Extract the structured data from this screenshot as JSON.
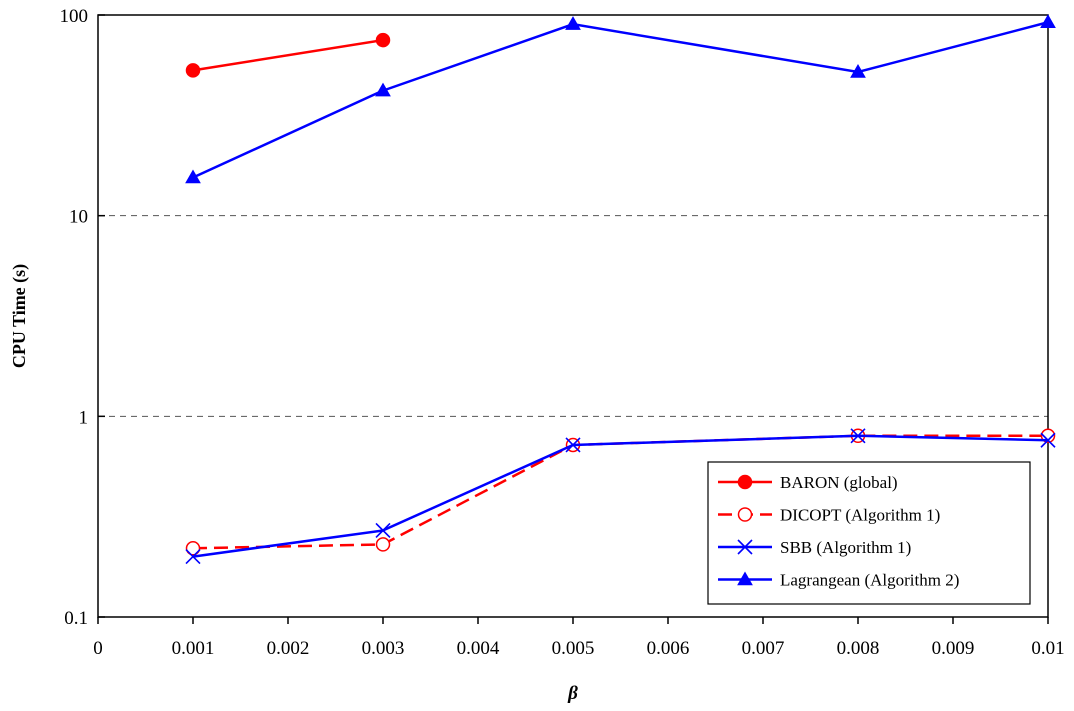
{
  "chart_data": {
    "type": "line",
    "title": "",
    "xlabel": "β",
    "ylabel": "CPU Time (s)",
    "x_ticks": [
      "0",
      "0.001",
      "0.002",
      "0.003",
      "0.004",
      "0.005",
      "0.006",
      "0.007",
      "0.008",
      "0.009",
      "0.01"
    ],
    "y_ticks": [
      "0.1",
      "1",
      "10",
      "100"
    ],
    "xlim": [
      0,
      0.01
    ],
    "ylim": [
      0.1,
      100
    ],
    "y_scale": "log",
    "grid": "horizontal dashed at 1 and 10",
    "legend_position": "bottom-right",
    "series": [
      {
        "name": "BARON (global)",
        "color": "#ff0000",
        "line_style": "solid",
        "marker": "filled-circle",
        "points": [
          [
            0.001,
            53
          ],
          [
            0.003,
            75
          ]
        ]
      },
      {
        "name": "DICOPT (Algorithm 1)",
        "color": "#ff0000",
        "line_style": "dashed",
        "marker": "open-circle",
        "points": [
          [
            0.001,
            0.22
          ],
          [
            0.003,
            0.23
          ],
          [
            0.005,
            0.72
          ],
          [
            0.008,
            0.8
          ],
          [
            0.01,
            0.8
          ]
        ]
      },
      {
        "name": "SBB (Algorithm 1)",
        "color": "#0000ff",
        "line_style": "solid",
        "marker": "x",
        "points": [
          [
            0.001,
            0.2
          ],
          [
            0.003,
            0.27
          ],
          [
            0.005,
            0.72
          ],
          [
            0.008,
            0.8
          ],
          [
            0.01,
            0.76
          ]
        ]
      },
      {
        "name": "Lagrangean (Algorithm 2)",
        "color": "#0000ff",
        "line_style": "solid",
        "marker": "filled-triangle",
        "points": [
          [
            0.001,
            15.5
          ],
          [
            0.003,
            42
          ],
          [
            0.005,
            90
          ],
          [
            0.008,
            52
          ],
          [
            0.01,
            92
          ]
        ]
      }
    ]
  }
}
